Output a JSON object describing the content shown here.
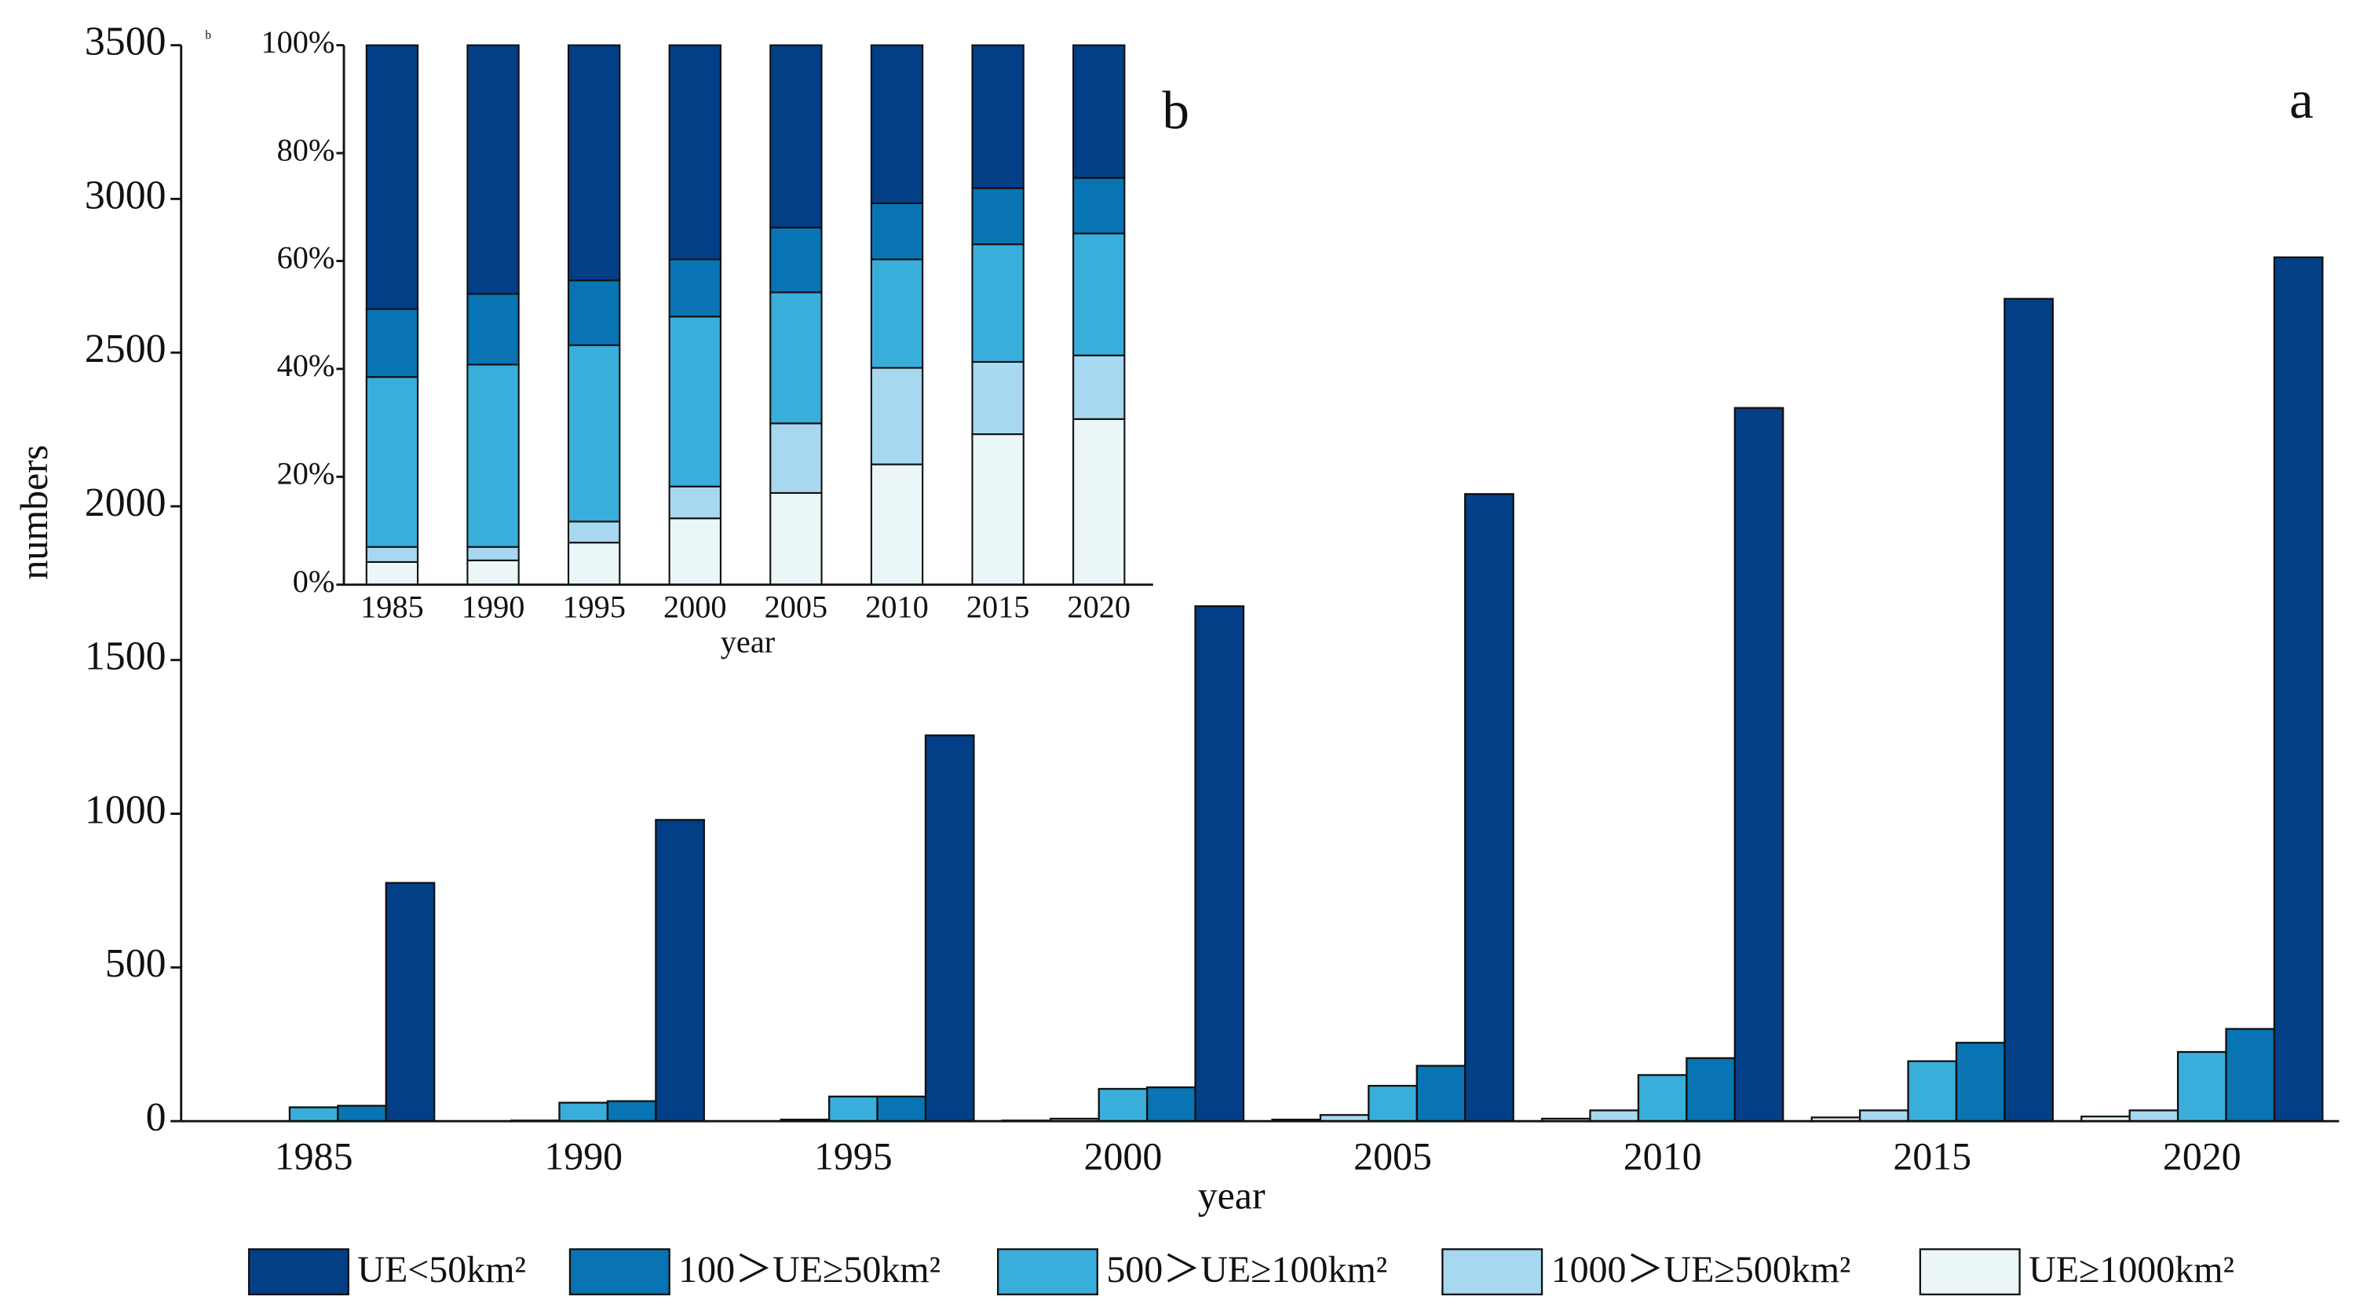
{
  "chart_data": [
    {
      "type": "bar",
      "label": "a",
      "x_label": "year",
      "y_label": "numbers",
      "categories": [
        "1985",
        "1990",
        "1995",
        "2000",
        "2005",
        "2010",
        "2015",
        "2020"
      ],
      "ylim": [
        0,
        3500
      ],
      "yticks": [
        0,
        500,
        1000,
        1500,
        2000,
        2500,
        3000,
        3500
      ],
      "series": [
        {
          "name": "UE<50km²",
          "color": "#023f87",
          "values": [
            775,
            980,
            1255,
            1675,
            2040,
            2320,
            2675,
            2810
          ]
        },
        {
          "name": "100＞UE≥50km²",
          "color": "#0874b3",
          "values": [
            50,
            65,
            80,
            110,
            180,
            205,
            255,
            300
          ]
        },
        {
          "name": "500＞UE≥100km²",
          "color": "#3aaedb",
          "values": [
            45,
            60,
            80,
            105,
            115,
            150,
            195,
            225
          ]
        },
        {
          "name": "1000＞UE≥500km²",
          "color": "#a8d8f0",
          "values": [
            0,
            2,
            5,
            8,
            20,
            35,
            35,
            35
          ]
        },
        {
          "name": "UE≥1000km²",
          "color": "#eaf6f7",
          "values": [
            0,
            0,
            0,
            2,
            5,
            8,
            12,
            15
          ]
        }
      ]
    },
    {
      "type": "stacked_bar",
      "label": "b",
      "corner_mark": "b",
      "x_label": "year",
      "categories": [
        "1985",
        "1990",
        "1995",
        "2000",
        "2005",
        "2010",
        "2015",
        "2020"
      ],
      "ylim": [
        0,
        100
      ],
      "yticks": [
        {
          "value": 0,
          "label": "0%"
        },
        {
          "value": 20,
          "label": "20%"
        },
        {
          "value": 40,
          "label": "40%"
        },
        {
          "value": 60,
          "label": "60%"
        },
        {
          "value": 80,
          "label": "80%"
        },
        {
          "value": 100,
          "label": "100%"
        }
      ],
      "series": [
        {
          "color": "#eaf6f7",
          "values": [
            4.2,
            4.5,
            7.8,
            12.3,
            17.0,
            22.3,
            27.9,
            30.7
          ]
        },
        {
          "color": "#a8d8f0",
          "values": [
            2.8,
            2.5,
            3.9,
            5.9,
            12.9,
            17.9,
            13.4,
            11.8
          ]
        },
        {
          "color": "#3aaedb",
          "values": [
            31.5,
            33.8,
            32.7,
            31.5,
            24.3,
            20.1,
            21.8,
            22.6
          ]
        },
        {
          "color": "#0874b3",
          "values": [
            12.6,
            13.1,
            12.0,
            10.6,
            12.0,
            10.4,
            10.4,
            10.3
          ]
        },
        {
          "color": "#023f87",
          "values": [
            48.9,
            46.1,
            43.6,
            39.7,
            33.8,
            29.3,
            26.5,
            24.6
          ]
        }
      ]
    }
  ]
}
